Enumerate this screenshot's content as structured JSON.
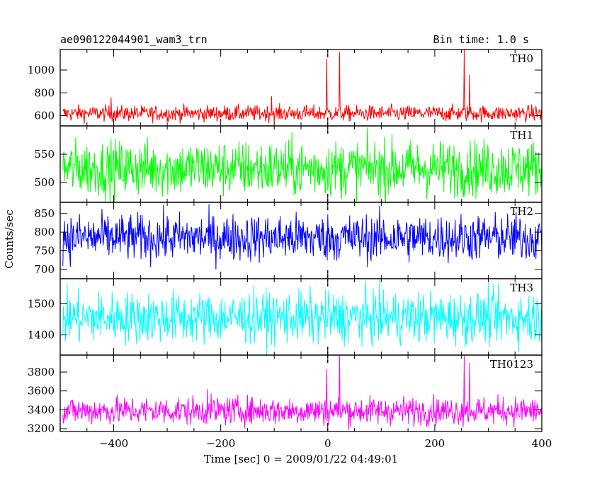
{
  "header": {
    "left_title": "ae090122044901_wam3_trn",
    "right_title": "Bin time: 1.0 s"
  },
  "axes": {
    "xlabel": "Time [sec] 0 = 2009/01/22 04:49:01",
    "ylabel": "Counts/sec"
  },
  "chart_data": {
    "type": "line",
    "x_range": [
      -500,
      400
    ],
    "x_ticks": [
      -400,
      -200,
      0,
      200,
      400
    ],
    "x_tick_labels": [
      "−400",
      "−200",
      "0",
      "200",
      "400"
    ],
    "marker_x": 0,
    "bin_time_s": 1.0,
    "panels": [
      {
        "name": "TH0",
        "color": "#ff0000",
        "ylim": [
          510,
          1180
        ],
        "y_ticks": [
          600,
          800,
          1000
        ],
        "y_tick_labels": [
          "600",
          "800",
          "1000"
        ],
        "baseline": 620,
        "noise": 35,
        "spikes": [
          {
            "x": -405,
            "y": 760
          },
          {
            "x": -105,
            "y": 770
          },
          {
            "x": -2,
            "y": 1100
          },
          {
            "x": 22,
            "y": 1160
          },
          {
            "x": 255,
            "y": 1180
          },
          {
            "x": 265,
            "y": 960
          }
        ]
      },
      {
        "name": "TH1",
        "color": "#00ff00",
        "ylim": [
          465,
          600
        ],
        "y_ticks": [
          500,
          550
        ],
        "y_tick_labels": [
          "500",
          "550"
        ],
        "baseline": 525,
        "noise": 25,
        "spikes": []
      },
      {
        "name": "TH2",
        "color": "#0000ff",
        "ylim": [
          675,
          880
        ],
        "y_ticks": [
          700,
          750,
          800,
          850
        ],
        "y_tick_labels": [
          "700",
          "750",
          "800",
          "850"
        ],
        "baseline": 785,
        "noise": 32,
        "spikes": []
      },
      {
        "name": "TH3",
        "color": "#00ffff",
        "ylim": [
          1335,
          1580
        ],
        "y_ticks": [
          1400,
          1500
        ],
        "y_tick_labels": [
          "1400",
          "1500"
        ],
        "baseline": 1455,
        "noise": 42,
        "spikes": []
      },
      {
        "name": "TH0123",
        "color": "#ff00ff",
        "ylim": [
          3170,
          3980
        ],
        "y_ticks": [
          3200,
          3400,
          3600,
          3800
        ],
        "y_tick_labels": [
          "3200",
          "3400",
          "3600",
          "3800"
        ],
        "baseline": 3390,
        "noise": 75,
        "spikes": [
          {
            "x": -225,
            "y": 3620
          },
          {
            "x": -2,
            "y": 3830
          },
          {
            "x": 22,
            "y": 3980
          },
          {
            "x": 255,
            "y": 3980
          },
          {
            "x": 265,
            "y": 3900
          }
        ]
      }
    ]
  }
}
